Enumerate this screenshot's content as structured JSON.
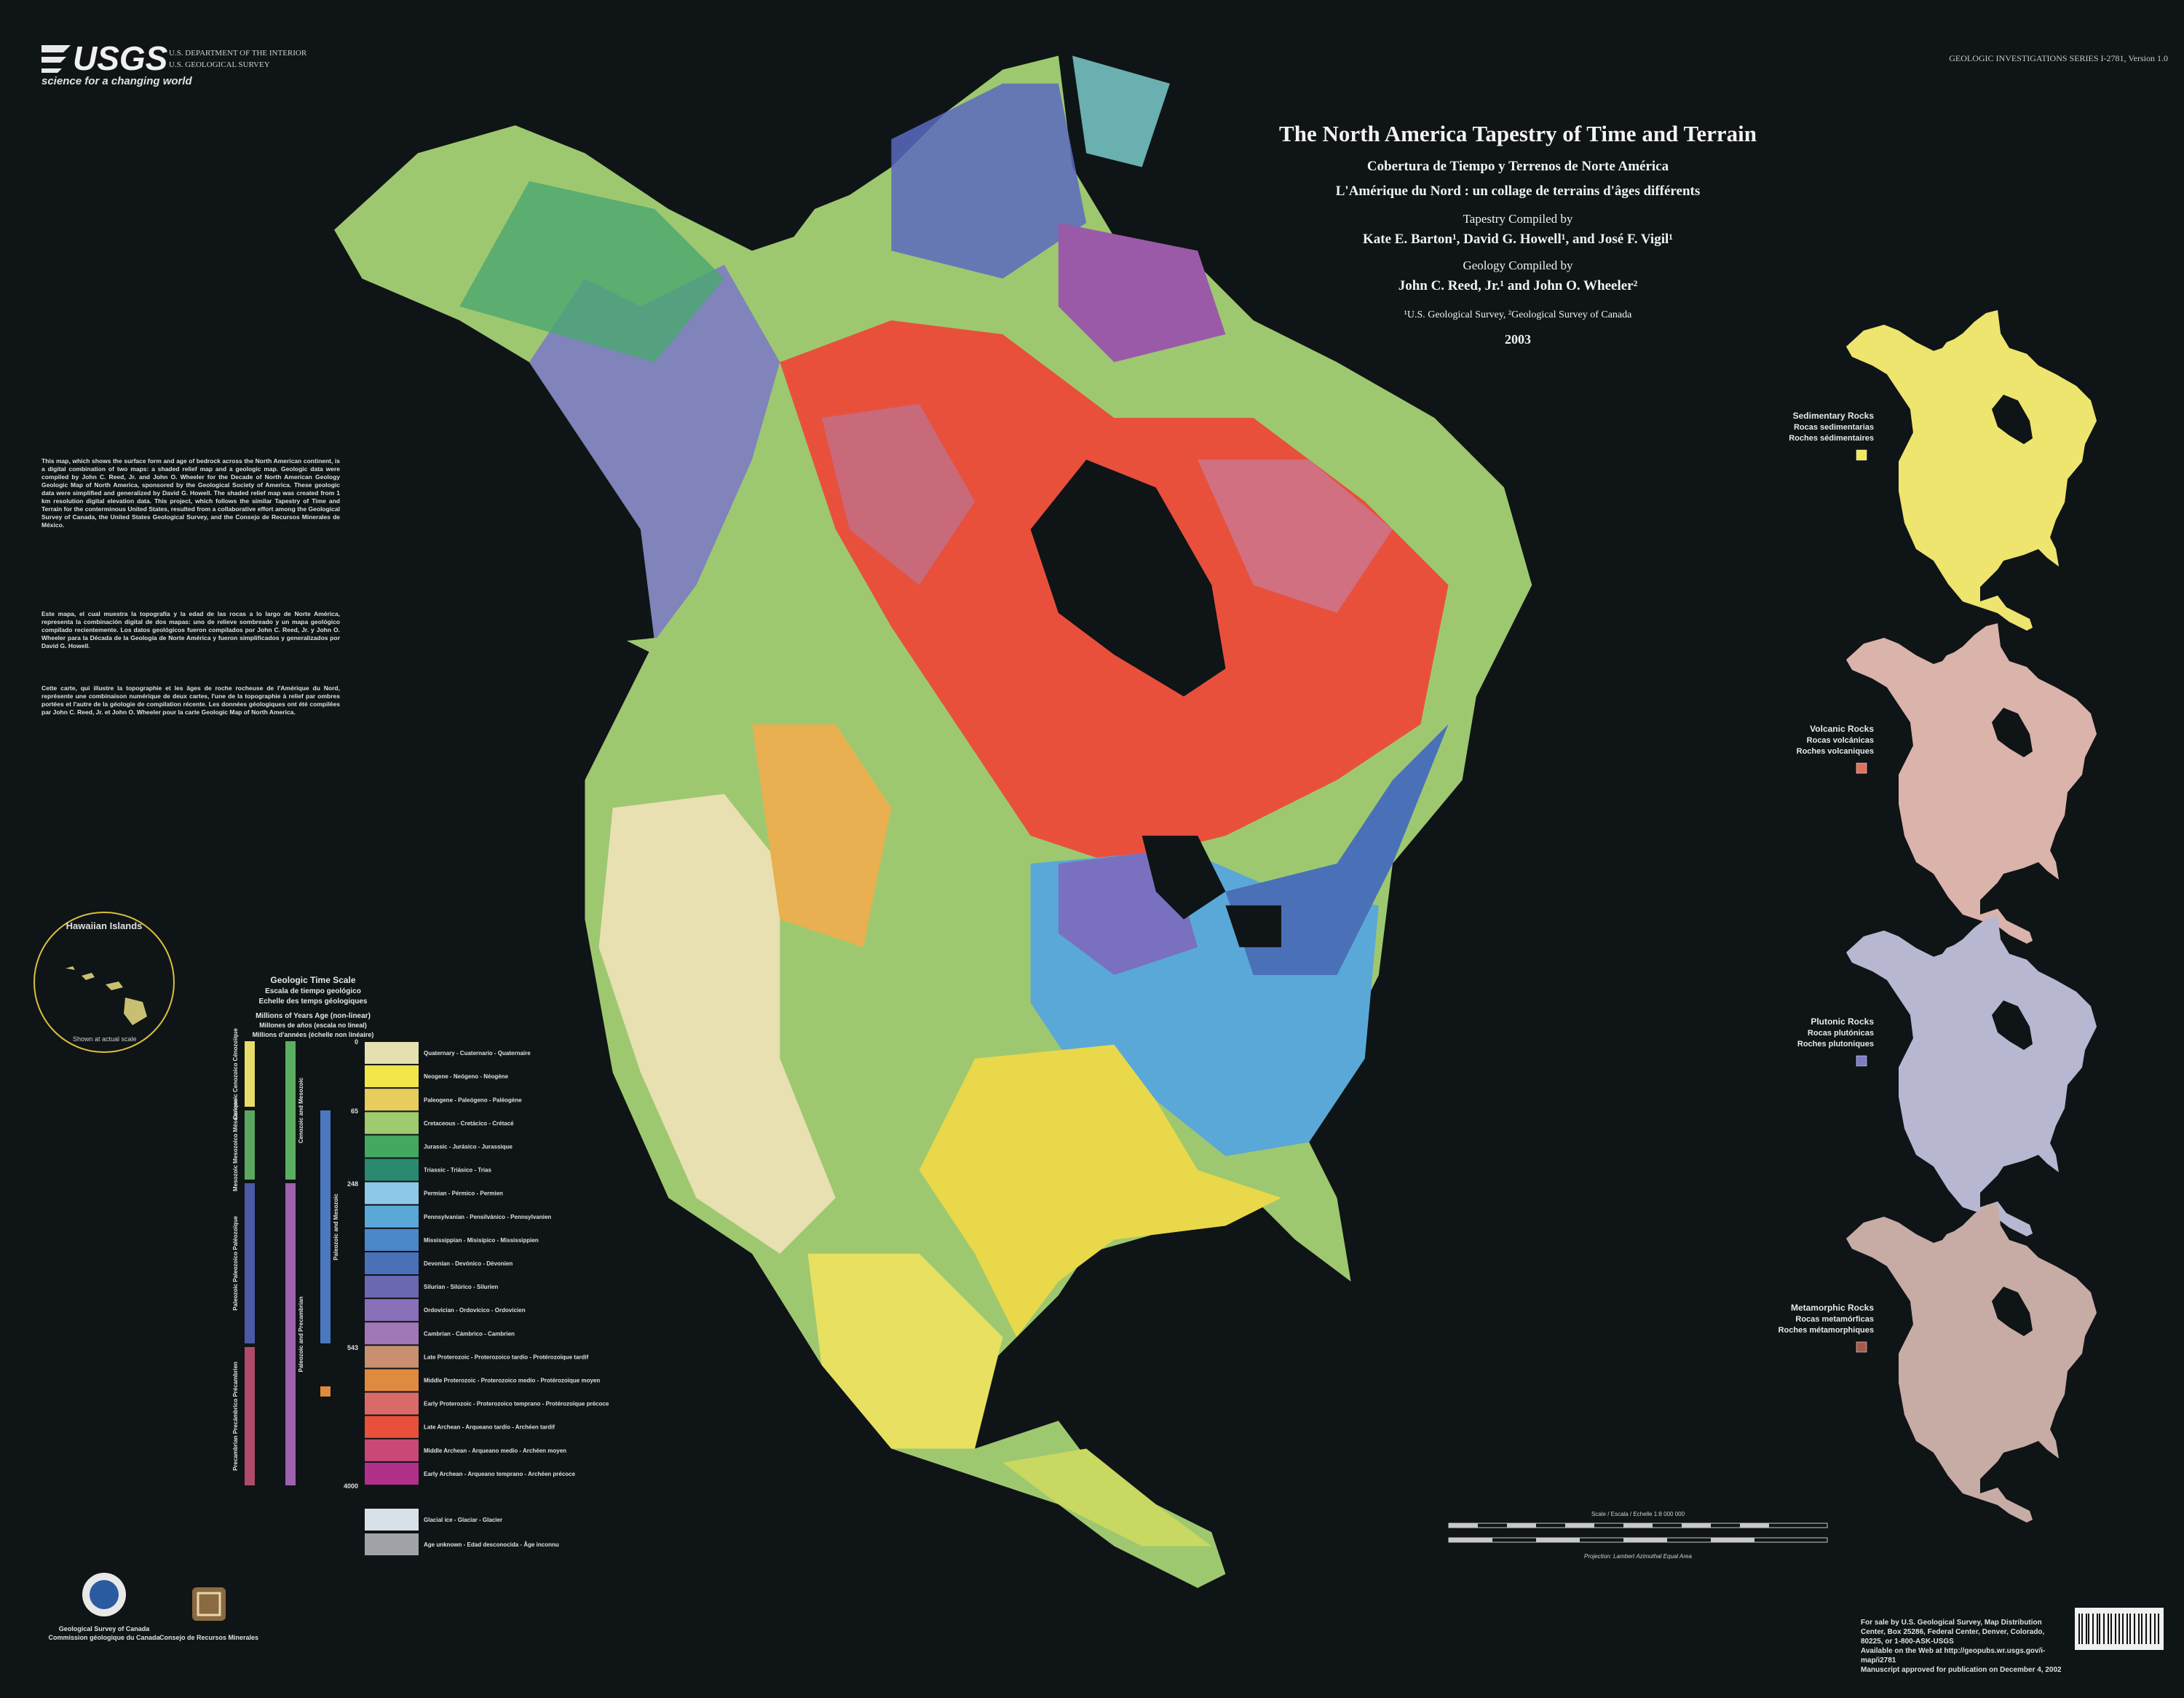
{
  "header": {
    "agency_logo": "USGS",
    "agency_tagline": "science for a changing world",
    "department": "U.S. DEPARTMENT OF THE INTERIOR",
    "survey": "U.S. GEOLOGICAL SURVEY",
    "series": "GEOLOGIC INVESTIGATIONS SERIES I-2781, Version 1.0"
  },
  "title": {
    "main": "The North America Tapestry of Time and Terrain",
    "spanish": "Cobertura de Tiempo y Terrenos de Norte América",
    "french": "L'Amérique du Nord : un collage de terrains d'âges différents",
    "tapestry_label": "Tapestry Compiled by",
    "tapestry_authors": "Kate E. Barton¹, David G. Howell¹, and José F. Vigil¹",
    "geology_label": "Geology Compiled by",
    "geology_authors": "John C. Reed, Jr.¹ and John O. Wheeler²",
    "affiliations": "¹U.S. Geological Survey, ²Geological Survey of Canada",
    "year": "2003"
  },
  "description": [
    "This map, which shows the surface form and age of bedrock across the North American continent, is a digital combination of two maps: a shaded relief map and a geologic map. Geologic data were compiled by John C. Reed, Jr. and John O. Wheeler for the Decade of North American Geology Geologic Map of North America, sponsored by the Geological Society of America. These geologic data were simplified and generalized by David G. Howell. The shaded relief map was created from 1 km resolution digital elevation data. This project, which follows the similar Tapestry of Time and Terrain for the conterminous United States, resulted from a collaborative effort among the Geological Survey of Canada, the United States Geological Survey, and the Consejo de Recursos Minerales de México.",
    "Este mapa, el cual muestra la topografía y la edad de las rocas a lo largo de Norte América, representa la combinación digital de dos mapas: uno de relieve sombreado y un mapa geológico compilado recientemente. Los datos geológicos fueron compilados por John C. Reed, Jr. y John O. Wheeler para la Década de la Geología de Norte América y fueron simplificados y generalizados por David G. Howell.",
    "Cette carte, qui illustre la topographie et les âges de roche rocheuse de l'Amérique du Nord, représente une combinaison numérique de deux cartes, l'une de la topographie à relief par ombres portées et l'autre de la géologie de compilation récente. Les données géologiques ont été compilées par John C. Reed, Jr. et John O. Wheeler pour la carte Geologic Map of North America."
  ],
  "inset": {
    "title": "Hawaiian Islands",
    "note": "Shown at actual scale"
  },
  "rock_maps": [
    {
      "name": "Sedimentary Rocks",
      "spanish": "Rocas sedimentarias",
      "french": "Roches sédimentaires",
      "color": "#f1e85a"
    },
    {
      "name": "Volcanic Rocks",
      "spanish": "Rocas volcánicas",
      "french": "Roches volcaniques",
      "color": "#e0705a"
    },
    {
      "name": "Plutonic Rocks",
      "spanish": "Rocas plutónicas",
      "french": "Roches plutoniques",
      "color": "#7d7cc8"
    },
    {
      "name": "Metamorphic Rocks",
      "spanish": "Rocas metamórficas",
      "french": "Roches métamorphiques",
      "color": "#a85a48"
    }
  ],
  "time_scale": {
    "title": "Geologic Time Scale",
    "spanish": "Escala de tiempo geológico",
    "french": "Echelle des temps géologiques",
    "axis_title": "Millions of Years Age (non-linear)",
    "axis_spanish": "Millones de años (escala no lineal)",
    "axis_french": "Millions d'années (échelle non linéaire)",
    "ages": [
      "0",
      "65",
      "248",
      "543",
      "4000"
    ],
    "eras": [
      {
        "label": "Cenozoic Cenozoico Cénozoïque",
        "color": "#e8dc6a"
      },
      {
        "label": "Mesozoic Mesozoico Mésozoïque",
        "color": "#5aa860"
      },
      {
        "label": "Paleozoic Paleozoico Paléozoïque",
        "color": "#4a5aa8"
      },
      {
        "label": "Precambrian Precámbrico Précambrien",
        "color": "#b04a6a"
      }
    ],
    "groups": [
      {
        "label": "Cenozoic and Mesozoic",
        "color": "#5ab060"
      },
      {
        "label": "Paleozoic and Precambrian",
        "color": "#a060b0"
      },
      {
        "label": "Paleozoic and Mesozoic",
        "color": "#4a78c0"
      }
    ],
    "units": [
      {
        "label": "Quaternary - Cuaternario - Quaternaire",
        "color": "#e6dfb0"
      },
      {
        "label": "Neogene - Neógeno - Néogène",
        "color": "#f2e64a"
      },
      {
        "label": "Paleogene - Paleógeno - Paléogène",
        "color": "#e8cc5c"
      },
      {
        "label": "Cretaceous - Cretácico - Crétacé",
        "color": "#9ecb6e"
      },
      {
        "label": "Jurassic - Jurásico - Jurassique",
        "color": "#44a860"
      },
      {
        "label": "Triassic - Triásico - Trias",
        "color": "#2a8a70"
      },
      {
        "label": "Permian - Pérmico - Permien",
        "color": "#8ec8e8"
      },
      {
        "label": "Pennsylvanian - Pensilvánico - Pennsylvanien",
        "color": "#5aa8d8"
      },
      {
        "label": "Mississippian - Misisípico - Mississippien",
        "color": "#4a88c8"
      },
      {
        "label": "Devonian - Devónico - Dévonien",
        "color": "#4a70b8"
      },
      {
        "label": "Silurian - Silúrico - Silurien",
        "color": "#6a68b0"
      },
      {
        "label": "Ordovician - Ordovícico - Ordovicien",
        "color": "#8a70b8"
      },
      {
        "label": "Cambrian - Cámbrico - Cambrien",
        "color": "#a078b8"
      },
      {
        "label": "Late Proterozoic - Proterozoico tardío - Protérozoïque tardif",
        "color": "#c89070"
      },
      {
        "label": "Middle Proterozoic - Proterozoico medio - Protérozoïque moyen",
        "color": "#e08a40"
      },
      {
        "label": "Early Proterozoic - Proterozoico temprano - Protérozoïque précoce",
        "color": "#d86a6a"
      },
      {
        "label": "Late Archean - Arqueano tardío - Archéen tardif",
        "color": "#e8503c"
      },
      {
        "label": "Middle Archean - Arqueano medio - Archéen moyen",
        "color": "#c84878"
      },
      {
        "label": "Early Archean - Arqueano temprano - Archéen précoce",
        "color": "#b0308a"
      }
    ],
    "other_units": [
      {
        "label": "Glacial ice - Glaciar - Glacier",
        "color": "#d8e0e8"
      },
      {
        "label": "Age unknown - Edad desconocida - Âge inconnu",
        "color": "#a0a4a8"
      }
    ]
  },
  "scale_bar": {
    "title": "Scale / Escala / Echelle 1:8 000 000",
    "projection": "Projection: Lambert Azimuthal Equal Area"
  },
  "partners": {
    "gsc": "Geological Survey of Canada",
    "gsc_french": "Commission géologique du Canada",
    "crm": "Consejo de Recursos Minerales"
  },
  "footer": [
    "For sale by U.S. Geological Survey, Map Distribution Center, Box 25286, Federal Center, Denver, Colorado, 80225, or 1-800-ASK-USGS",
    "Available on the Web at http://geopubs.wr.usgs.gov/i-map/i2781",
    "Manuscript approved for publication on December 4, 2002"
  ]
}
